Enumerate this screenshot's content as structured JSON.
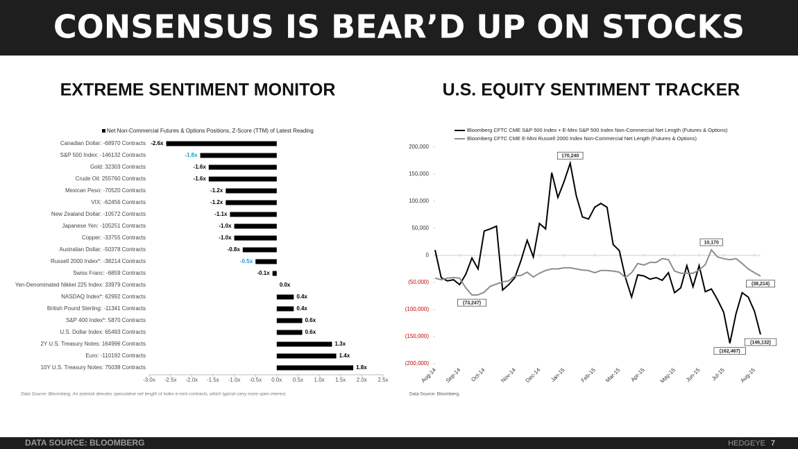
{
  "header": {
    "title": "CONSENSUS IS BEAR’D UP ON STOCKS"
  },
  "chart_data": [
    {
      "type": "hbar",
      "title": "EXTREME SENTIMENT MONITOR",
      "series_name": "Net Non-Commercial Futures & Options Positions, Z-Score (TTM) of Latest Reading",
      "categories": [
        "Canadian Dollar: -68970 Contracts",
        "S&P 500 Index: -146132 Contracts",
        "Gold: 32303 Contracts",
        "Crude Oil: 255760 Contracts",
        "Mexican Peso: -70520 Contracts",
        "VIX: -62456 Contracts",
        "New Zealand Dollar: -10572 Contracts",
        "Japanese Yen: -105251 Contracts",
        "Copper: -33755 Contracts",
        "Australian Dollar: -50378 Contracts",
        "Russell 2000 Index*: -38214 Contracts",
        "Swiss Franc: -6859 Contracts",
        "Yen-Denominated Nikkei 225 Index: 33979 Contracts",
        "NASDAQ Index*: 62992 Contracts",
        "British Pound Sterling: -11341 Contracts",
        "S&P 400 Index*: 5870 Contracts",
        "U.S. Dollar Index: 65493 Contracts",
        "2Y U.S. Treasury Notes: 164996 Contracts",
        "Euro: -110192 Contracts",
        "10Y U.S. Treasury Notes: 75038 Contracts"
      ],
      "values": [
        -2.6,
        -1.8,
        -1.6,
        -1.6,
        -1.2,
        -1.2,
        -1.1,
        -1.0,
        -1.0,
        -0.8,
        -0.5,
        -0.1,
        0.0,
        0.4,
        0.4,
        0.6,
        0.6,
        1.3,
        1.4,
        1.8
      ],
      "value_labels": [
        "-2.6x",
        "-1.8x",
        "-1.6x",
        "-1.6x",
        "-1.2x",
        "-1.2x",
        "-1.1x",
        "-1.0x",
        "-1.0x",
        "-0.8x",
        "-0.5x",
        "-0.1x",
        "0.0x",
        "0.4x",
        "0.4x",
        "0.6x",
        "0.6x",
        "1.3x",
        "1.4x",
        "1.8x"
      ],
      "color": "#000000",
      "value_label_colors": [
        "#000000",
        "#1a9ad6",
        "#000000",
        "#000000",
        "#000000",
        "#000000",
        "#000000",
        "#000000",
        "#000000",
        "#000000",
        "#1a9ad6",
        "#000000",
        "#000000",
        "#000000",
        "#000000",
        "#000000",
        "#000000",
        "#000000",
        "#000000",
        "#000000"
      ],
      "xlim": [
        -3.0,
        2.5
      ],
      "xticks": [
        {
          "value": -3.0,
          "label": "-3.0x"
        },
        {
          "value": -2.5,
          "label": "-2.5x"
        },
        {
          "value": -2.0,
          "label": "-2.0x"
        },
        {
          "value": -1.5,
          "label": "-1.5x"
        },
        {
          "value": -1.0,
          "label": "-1.0x"
        },
        {
          "value": -0.5,
          "label": "-0.5x"
        },
        {
          "value": 0.0,
          "label": "0.0x"
        },
        {
          "value": 0.5,
          "label": "0.5x"
        },
        {
          "value": 1.0,
          "label": "1.0x"
        },
        {
          "value": 1.5,
          "label": "1.5x"
        },
        {
          "value": 2.0,
          "label": "2.0x"
        },
        {
          "value": 2.5,
          "label": "2.5x"
        }
      ],
      "note": "Data Source: Bloomberg. An asterisk denotes speculative net length of index e-mini contracts, which typical carry more open interest."
    },
    {
      "type": "line",
      "title": "U.S. EQUITY SENTIMENT TRACKER",
      "series": [
        {
          "name": "Bloomberg CFTC CME S&P 500 Index + E-Mini S&P 500 Index Non-Commercial Net Length (Futures & Options)",
          "color": "#000000",
          "values": [
            10000,
            -41000,
            -47000,
            -45000,
            -54000,
            -35000,
            -5000,
            -25000,
            45000,
            49000,
            54000,
            -64000,
            -54000,
            -41000,
            -9000,
            28000,
            -3000,
            59000,
            49000,
            153000,
            107000,
            136000,
            170240,
            110000,
            71000,
            67000,
            89000,
            96000,
            89000,
            20000,
            9000,
            -41000,
            -77000,
            -36000,
            -38000,
            -44000,
            -41000,
            -46000,
            -32000,
            -69000,
            -60000,
            -19000,
            -58000,
            -19000,
            -67000,
            -62000,
            -82000,
            -105000,
            -162467,
            -108000,
            -69000,
            -77000,
            -103000,
            -146132
          ]
        },
        {
          "name": "Bloomberg CFTC CME E-Mini Russell 2000 Index Non-Commercial Net Length (Futures & Options)",
          "color": "#8c8c8c",
          "values": [
            -42000,
            -45000,
            -42000,
            -41000,
            -42000,
            -60000,
            -73247,
            -73000,
            -68000,
            -57000,
            -53000,
            -49000,
            -47000,
            -38000,
            -37000,
            -31000,
            -40000,
            -33000,
            -28000,
            -25000,
            -25000,
            -23000,
            -23000,
            -25000,
            -27000,
            -28000,
            -32000,
            -28000,
            -28000,
            -29000,
            -31000,
            -41000,
            -32000,
            -15000,
            -18000,
            -13000,
            -13000,
            -6000,
            -8000,
            -29000,
            -33000,
            -33000,
            -33000,
            -27000,
            -17000,
            10170,
            -3000,
            -6000,
            -8000,
            -6000,
            -15000,
            -25000,
            -32000,
            -38214
          ]
        }
      ],
      "annotations": [
        {
          "series": 0,
          "index": 22,
          "label": "170,240"
        },
        {
          "series": 0,
          "index": 48,
          "label": "(162,467)"
        },
        {
          "series": 0,
          "index": 53,
          "label": "(146,132)"
        },
        {
          "series": 1,
          "index": 6,
          "label": "(73,247)"
        },
        {
          "series": 1,
          "index": 45,
          "label": "10,170"
        },
        {
          "series": 1,
          "index": 53,
          "label": "(38,214)"
        }
      ],
      "xlim": [
        0,
        53
      ],
      "xticks": [
        {
          "value": 0,
          "label": "Aug-14"
        },
        {
          "value": 4,
          "label": "Sep-14"
        },
        {
          "value": 8,
          "label": "Oct-14"
        },
        {
          "value": 13,
          "label": "Nov-14"
        },
        {
          "value": 17,
          "label": "Dec-14"
        },
        {
          "value": 21,
          "label": "Jan-15"
        },
        {
          "value": 26,
          "label": "Feb-15"
        },
        {
          "value": 30,
          "label": "Mar-15"
        },
        {
          "value": 34,
          "label": "Apr-15"
        },
        {
          "value": 39,
          "label": "May-15"
        },
        {
          "value": 43,
          "label": "Jun-15"
        },
        {
          "value": 47,
          "label": "Jul-15"
        },
        {
          "value": 52,
          "label": "Aug-15"
        }
      ],
      "ylim": [
        -200000,
        200000
      ],
      "yticks": [
        {
          "value": -200000,
          "label": "(200,000)"
        },
        {
          "value": -150000,
          "label": "(150,000)"
        },
        {
          "value": -100000,
          "label": "(100,000)"
        },
        {
          "value": -50000,
          "label": "(50,000)"
        },
        0,
        {
          "value": 50000,
          "label": "50,000"
        },
        {
          "value": 100000,
          "label": "100,000"
        },
        {
          "value": 150000,
          "label": "150,000"
        },
        {
          "value": 200000,
          "label": "200,000"
        }
      ],
      "negative_tick_color": "#c00000",
      "note": "Data Source: Bloomberg."
    }
  ],
  "footer": {
    "source": "DATA SOURCE: BLOOMBERG",
    "brand": "HEDGEYE",
    "page": 7
  }
}
